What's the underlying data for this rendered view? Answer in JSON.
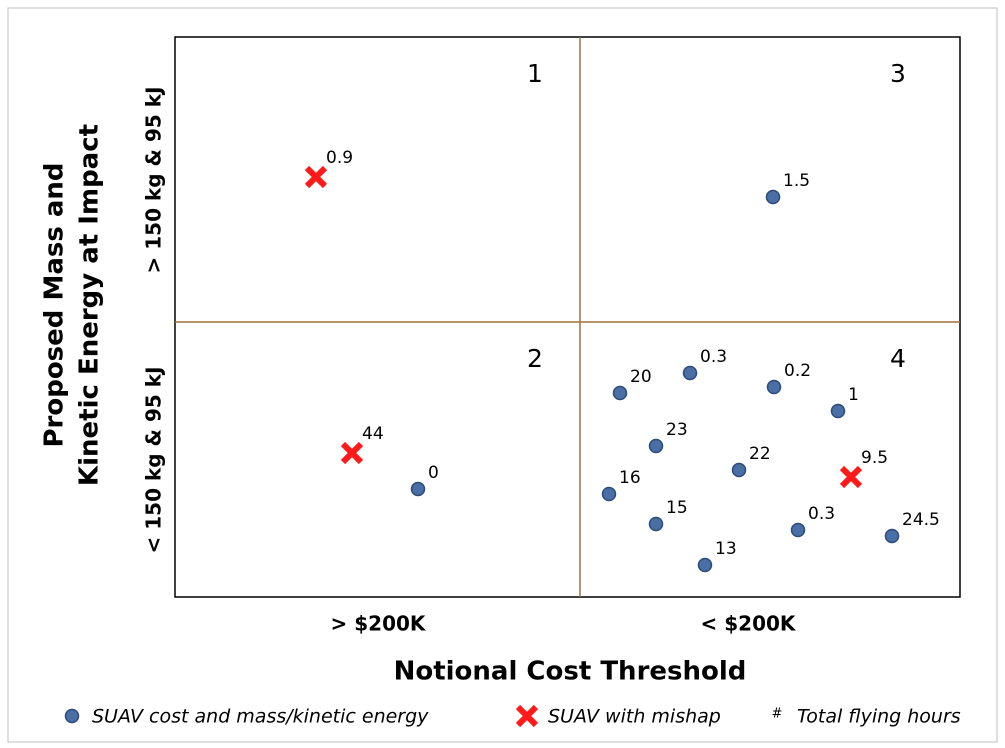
{
  "y_axis": {
    "title_lines": [
      "Proposed Mass and",
      "Kinetic Energy at Impact"
    ],
    "categories": [
      "> 150 kg & 95 kJ",
      "< 150 kg & 95 kJ"
    ]
  },
  "x_axis": {
    "title": "Notional Cost Threshold",
    "categories": [
      "> $200K",
      "< $200K"
    ]
  },
  "quadrants": [
    "1",
    "2",
    "3",
    "4"
  ],
  "points": [
    {
      "kind": "mishap",
      "label": "0.9"
    },
    {
      "kind": "suav",
      "label": "1.5"
    },
    {
      "kind": "mishap",
      "label": "44"
    },
    {
      "kind": "suav",
      "label": "0"
    },
    {
      "kind": "suav",
      "label": "20"
    },
    {
      "kind": "suav",
      "label": "0.3"
    },
    {
      "kind": "suav",
      "label": "0.2"
    },
    {
      "kind": "suav",
      "label": "1"
    },
    {
      "kind": "suav",
      "label": "23"
    },
    {
      "kind": "suav",
      "label": "22"
    },
    {
      "kind": "mishap",
      "label": "9.5"
    },
    {
      "kind": "suav",
      "label": "16"
    },
    {
      "kind": "suav",
      "label": "15"
    },
    {
      "kind": "suav",
      "label": "0.3"
    },
    {
      "kind": "suav",
      "label": "24.5"
    },
    {
      "kind": "suav",
      "label": "13"
    }
  ],
  "legend": {
    "suav": "SUAV cost and mass/kinetic energy",
    "mishap": "SUAV with mishap",
    "hash_symbol": "#",
    "hours": "Total flying hours"
  }
}
